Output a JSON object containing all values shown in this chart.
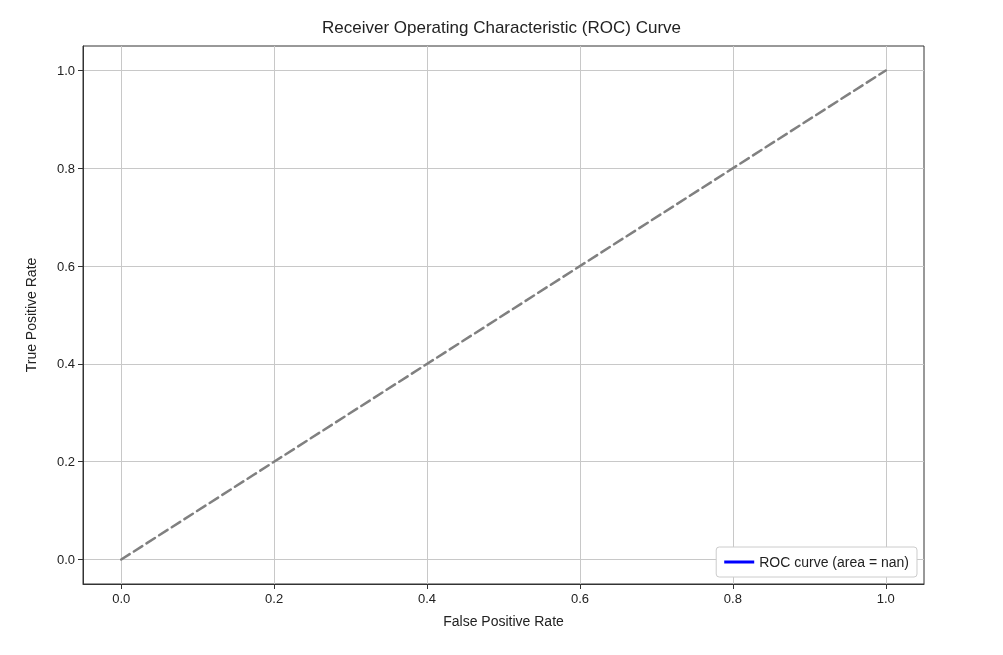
{
  "chart_data": {
    "type": "line",
    "title": "Receiver Operating Characteristic (ROC) Curve",
    "xlabel": "False Positive Rate",
    "ylabel": "True Positive Rate",
    "series": [
      {
        "name": "ROC curve (area = nan)",
        "color": "#0000ff",
        "line_style": "solid"
      },
      {
        "color": "#808080",
        "x": [
          0,
          1
        ],
        "values": [
          0,
          1
        ],
        "line_style": "dashed"
      }
    ],
    "xlim": [
      -0.05,
      1.05
    ],
    "ylim": [
      -0.05,
      1.05
    ],
    "xticks": [
      {
        "value": 0,
        "label": "0.0"
      },
      {
        "value": 0.2,
        "label": "0.2"
      },
      {
        "value": 0.4,
        "label": "0.4"
      },
      {
        "value": 0.6,
        "label": "0.6"
      },
      {
        "value": 0.8,
        "label": "0.8"
      },
      {
        "value": 1,
        "label": "1.0"
      }
    ],
    "yticks": [
      {
        "value": 0,
        "label": "0.0"
      },
      {
        "value": 0.2,
        "label": "0.2"
      },
      {
        "value": 0.4,
        "label": "0.4"
      },
      {
        "value": 0.6,
        "label": "0.6"
      },
      {
        "value": 0.8,
        "label": "0.8"
      },
      {
        "value": 1,
        "label": "1.0"
      }
    ],
    "grid": true,
    "legend": "bottom right",
    "marker": "none"
  }
}
